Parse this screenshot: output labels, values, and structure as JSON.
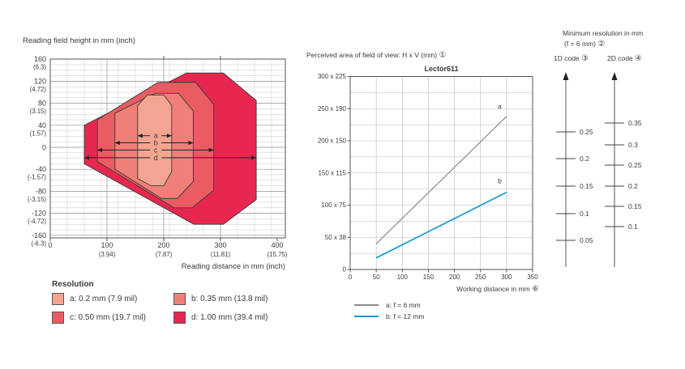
{
  "colors": {
    "field_a": "#f4a592",
    "field_b": "#ef7f77",
    "field_c": "#ea5c62",
    "field_d": "#e7274f",
    "line_a": "#8a8a8a",
    "line_b": "#149bd7",
    "grid_minor": "#c9c9c9",
    "grid_major": "#8f8f8f",
    "box_border": "#555555",
    "arrow": "#222222",
    "text": "#3b3b3b"
  },
  "chart_data": [
    {
      "id": "reading_field",
      "type": "area",
      "ylabel": "Reading field height in mm (inch)",
      "xlabel": "Reading distance in mm (inch)",
      "legend_title": "Resolution",
      "x_range": [
        0,
        414
      ],
      "y_range": [
        -165,
        160
      ],
      "y_ticks": [
        {
          "v": 160,
          "mm": "160",
          "inch": "(6.3)"
        },
        {
          "v": 120,
          "mm": "120",
          "inch": "(4.72)"
        },
        {
          "v": 80,
          "mm": "80",
          "inch": "(3.15)"
        },
        {
          "v": 40,
          "mm": "40",
          "inch": "(1.57)"
        },
        {
          "v": 0,
          "mm": "0",
          "inch": ""
        },
        {
          "v": -40,
          "mm": "-40",
          "inch": "(-1.57)"
        },
        {
          "v": -80,
          "mm": "-80",
          "inch": "(-3.15)"
        },
        {
          "v": -120,
          "mm": "-120",
          "inch": "(-4.72)"
        },
        {
          "v": -160,
          "mm": "-160",
          "inch": "(-6.3)"
        }
      ],
      "x_ticks": [
        {
          "v": 0,
          "mm": "0",
          "inch": ""
        },
        {
          "v": 100,
          "mm": "100",
          "inch": "(3.94)"
        },
        {
          "v": 200,
          "mm": "200",
          "inch": "(7.87)"
        },
        {
          "v": 300,
          "mm": "300",
          "inch": "(11.81)"
        },
        {
          "v": 400,
          "mm": "400",
          "inch": "(15.75)"
        }
      ],
      "fields": [
        {
          "id": "d",
          "legend": "d: 1.00 mm (39.4 mil)",
          "color": "#e7274f",
          "polygon": [
            [
              60,
              -30
            ],
            [
              60,
              40
            ],
            [
              240,
              135
            ],
            [
              305,
              135
            ],
            [
              363,
              85
            ],
            [
              363,
              -95
            ],
            [
              305,
              -140
            ],
            [
              253,
              -140
            ]
          ]
        },
        {
          "id": "c",
          "legend": "c: 0.50 mm (19.7 mil)",
          "color": "#ea5c62",
          "polygon": [
            [
              83,
              -26
            ],
            [
              83,
              50
            ],
            [
              190,
              118
            ],
            [
              256,
              118
            ],
            [
              288,
              78
            ],
            [
              288,
              -78
            ],
            [
              250,
              -110
            ],
            [
              218,
              -110
            ]
          ]
        },
        {
          "id": "b",
          "legend": "b: 0.35 mm (13.8 mil)",
          "color": "#ef7f77",
          "polygon": [
            [
              114,
              -40
            ],
            [
              114,
              62
            ],
            [
              185,
              98
            ],
            [
              226,
              98
            ],
            [
              252,
              66
            ],
            [
              252,
              -62
            ],
            [
              224,
              -93
            ],
            [
              196,
              -93
            ]
          ]
        },
        {
          "id": "a",
          "legend": "a: 0.2 mm (7.9 mil)",
          "color": "#f4a592",
          "polygon": [
            [
              154,
              -57
            ],
            [
              154,
              76
            ],
            [
              171,
              95
            ],
            [
              200,
              95
            ],
            [
              214,
              76
            ],
            [
              214,
              -44
            ],
            [
              200,
              -70
            ],
            [
              178,
              -70
            ]
          ]
        }
      ],
      "arrows": [
        {
          "label": "a",
          "x1": 154,
          "x2": 214,
          "y": 21
        },
        {
          "label": "b",
          "x1": 114,
          "x2": 252,
          "y": 8
        },
        {
          "label": "c",
          "x1": 83,
          "x2": 288,
          "y": -5
        },
        {
          "label": "d",
          "x1": 60,
          "x2": 363,
          "y": -19
        }
      ]
    },
    {
      "id": "field_of_view",
      "type": "line",
      "header": "Perceived area of field of view: H x V (mm)",
      "header_marker": "①",
      "title": "Lector611",
      "xlabel": "Working distance in mm",
      "xlabel_marker": "⑥",
      "x_range": [
        0,
        350
      ],
      "y_range": [
        0,
        300
      ],
      "grid_step_x": 50,
      "grid_step_y": 25,
      "y_ticks": [
        {
          "v": 0,
          "label": "0"
        },
        {
          "v": 50,
          "label": "50 x 38"
        },
        {
          "v": 100,
          "label": "100 x 75"
        },
        {
          "v": 150,
          "label": "150 x 115"
        },
        {
          "v": 200,
          "label": "200 x 150"
        },
        {
          "v": 250,
          "label": "250 x 190"
        },
        {
          "v": 300,
          "label": "300 x 225"
        }
      ],
      "x_ticks": [
        0,
        50,
        100,
        150,
        200,
        250,
        300,
        350
      ],
      "series": [
        {
          "id": "a",
          "legend": "a: f = 6 mm",
          "color": "#8a8a8a",
          "width": 1.2,
          "points": [
            [
              50,
              40
            ],
            [
              300,
              238
            ]
          ],
          "label_at": [
            287,
            250
          ]
        },
        {
          "id": "b",
          "legend": "b: f = 12 mm",
          "color": "#149bd7",
          "width": 1.7,
          "points": [
            [
              50,
              18
            ],
            [
              300,
              120
            ]
          ],
          "label_at": [
            287,
            134
          ]
        }
      ]
    },
    {
      "id": "min_resolution",
      "type": "scale",
      "title_line1": "Minimum resolution in mm",
      "title_line2": "(f = 6 mm)",
      "title_marker": "②",
      "scales": [
        {
          "label": "1D code",
          "marker": "③",
          "ticks": [
            {
              "v": "0.25",
              "y": 163
            },
            {
              "v": "0.2",
              "y": 196
            },
            {
              "v": "0.15",
              "y": 230
            },
            {
              "v": "0.1",
              "y": 264
            },
            {
              "v": "0.05",
              "y": 297
            }
          ]
        },
        {
          "label": "2D code",
          "marker": "④",
          "ticks": [
            {
              "v": "0.35",
              "y": 152
            },
            {
              "v": "0.3",
              "y": 179
            },
            {
              "v": "0.25",
              "y": 204
            },
            {
              "v": "0.2",
              "y": 230
            },
            {
              "v": "0.15",
              "y": 255
            },
            {
              "v": "0.1",
              "y": 280
            }
          ]
        }
      ]
    }
  ]
}
